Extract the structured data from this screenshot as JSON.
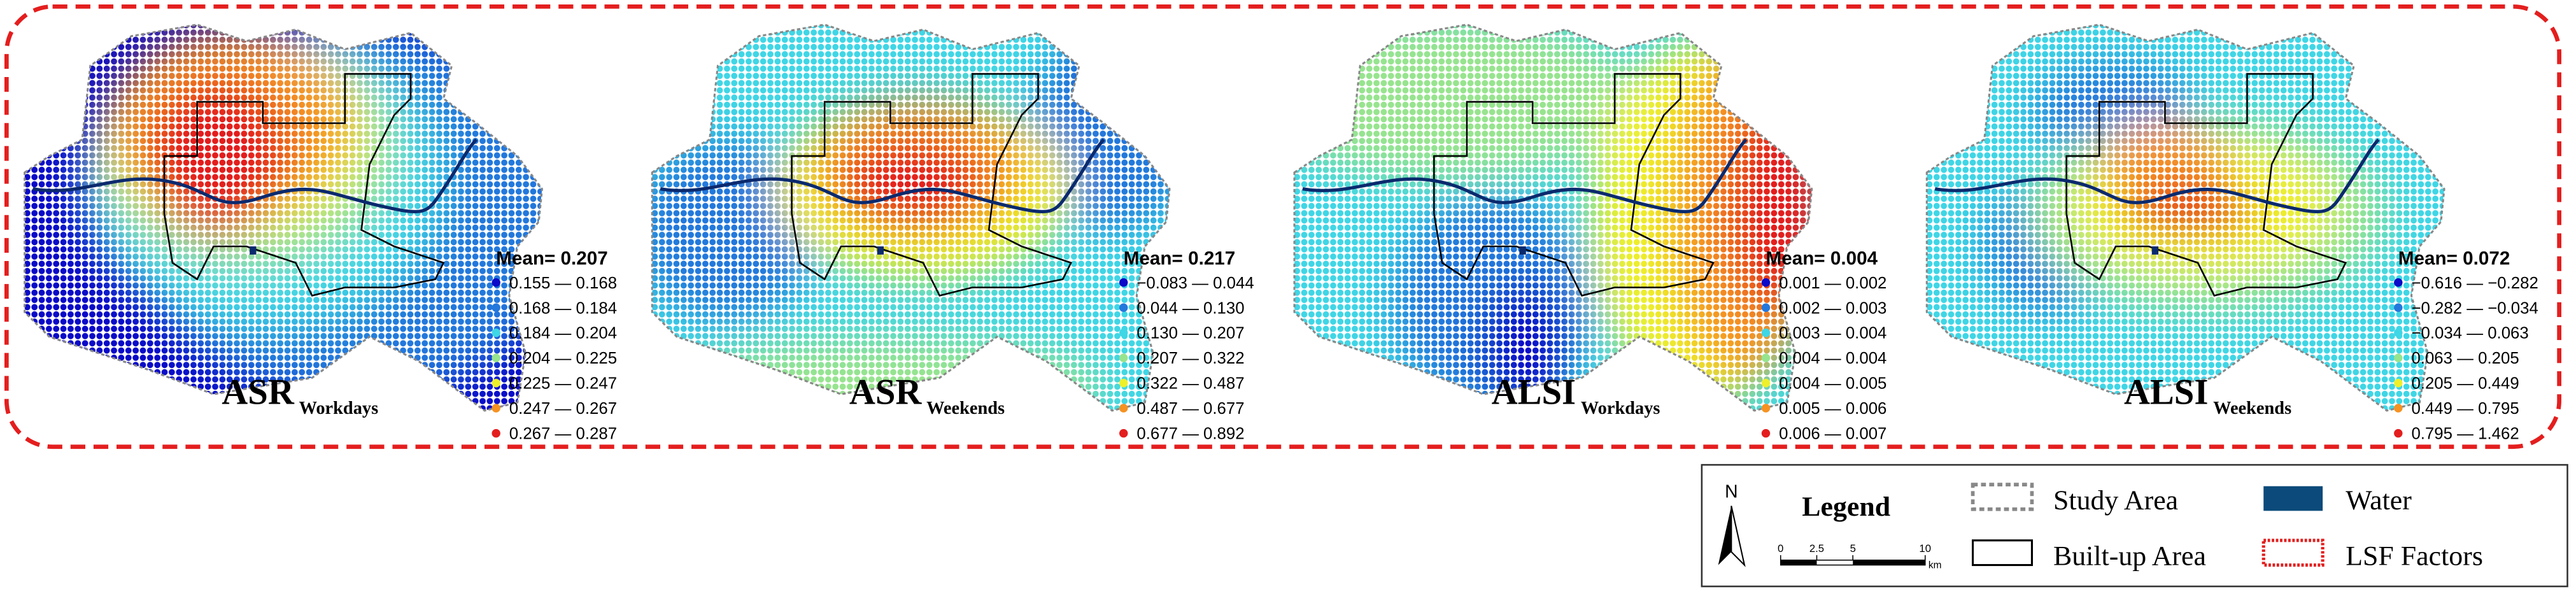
{
  "panels": [
    {
      "title": "ASR",
      "subscript": "Workdays",
      "mean": "Mean= 0.207",
      "classes": [
        "0.155 — 0.168",
        "0.168 — 0.184",
        "0.184 — 0.204",
        "0.204 — 0.225",
        "0.225 — 0.247",
        "0.247 — 0.267",
        "0.267 — 0.287"
      ]
    },
    {
      "title": "ASR",
      "subscript": "Weekends",
      "mean": "Mean= 0.217",
      "classes": [
        "−0.083 — 0.044",
        "0.044 — 0.130",
        "0.130 — 0.207",
        "0.207 — 0.322",
        "0.322 — 0.487",
        "0.487 — 0.677",
        "0.677 — 0.892"
      ]
    },
    {
      "title": "ALSI",
      "subscript": "Workdays",
      "mean": "Mean= 0.004",
      "classes": [
        "0.001 — 0.002",
        "0.002 — 0.003",
        "0.003 — 0.004",
        "0.004 — 0.004",
        "0.004 — 0.005",
        "0.005 — 0.006",
        "0.006 — 0.007"
      ]
    },
    {
      "title": "ALSI",
      "subscript": "Weekends",
      "mean": "Mean= 0.072",
      "classes": [
        "−0.616 — −0.282",
        "−0.282 — −0.034",
        "−0.034 — 0.063",
        "0.063 — 0.205",
        "0.205 — 0.449",
        "0.449 — 0.795",
        "0.795 — 1.462"
      ]
    }
  ],
  "palette": [
    "#0a0ac8",
    "#2478dc",
    "#3fd6e6",
    "#97e48e",
    "#eef02a",
    "#f59222",
    "#e41e1e"
  ],
  "legend": {
    "title": "Legend",
    "north": "N",
    "scale": {
      "ticks": [
        0,
        2.5,
        5,
        10
      ],
      "unit": "km"
    },
    "items": [
      "Study Area",
      "Built-up Area",
      "Water",
      "LSF Factors"
    ]
  }
}
